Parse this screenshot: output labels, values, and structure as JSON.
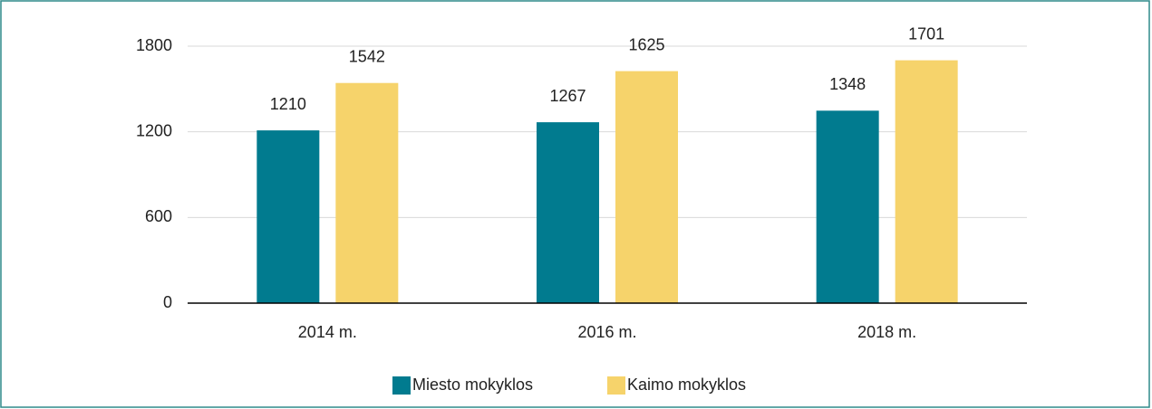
{
  "chart_data": {
    "type": "bar",
    "categories": [
      "2014 m.",
      "2016 m.",
      "2018 m."
    ],
    "series": [
      {
        "name": "Miesto mokyklos",
        "color": "#017b8f",
        "values": [
          1210,
          1267,
          1348
        ]
      },
      {
        "name": "Kaimo mokyklos",
        "color": "#f6d36b",
        "values": [
          1542,
          1625,
          1701
        ]
      }
    ],
    "ylim": [
      0,
      1800
    ],
    "yticks": [
      0,
      600,
      1200,
      1800
    ],
    "grid": true,
    "legend": "bottom"
  }
}
